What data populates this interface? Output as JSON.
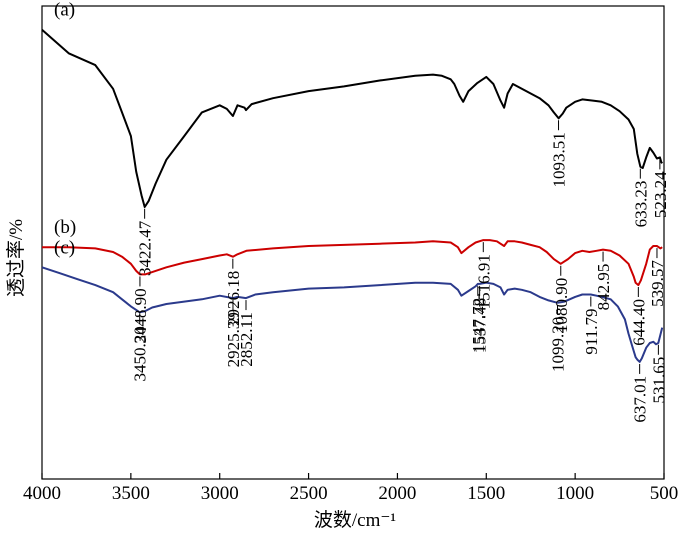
{
  "chart_data": {
    "type": "line",
    "xlabel": "波数/cm⁻¹",
    "ylabel": "透过率/%",
    "xlim": [
      4000,
      500
    ],
    "x_reversed": true,
    "xticks": [
      "4000",
      "3500",
      "3000",
      "2500",
      "2000",
      "1500",
      "1000",
      "500"
    ],
    "grid": false,
    "series": [
      {
        "name": "(a)",
        "color": "#000000",
        "x": [
          4000,
          3850,
          3700,
          3600,
          3550,
          3500,
          3470,
          3440,
          3422,
          3400,
          3360,
          3300,
          3200,
          3100,
          3000,
          2960,
          2926,
          2900,
          2860,
          2852,
          2820,
          2700,
          2500,
          2300,
          2100,
          1900,
          1800,
          1750,
          1700,
          1680,
          1650,
          1630,
          1600,
          1550,
          1500,
          1460,
          1420,
          1400,
          1380,
          1350,
          1300,
          1250,
          1200,
          1150,
          1120,
          1093,
          1070,
          1050,
          1000,
          960,
          900,
          850,
          800,
          750,
          700,
          670,
          650,
          633,
          620,
          600,
          580,
          560,
          540,
          523,
          515,
          510
        ],
        "y": [
          38,
          36,
          35,
          33,
          31,
          29,
          26,
          24,
          23,
          23.5,
          25,
          27,
          29,
          31,
          31.6,
          31.3,
          30.7,
          31.6,
          31.4,
          31.2,
          31.7,
          32.2,
          32.8,
          33.2,
          33.7,
          34.1,
          34.2,
          34.1,
          33.8,
          33.4,
          32.4,
          31.9,
          32.8,
          33.5,
          34.0,
          33.4,
          32.0,
          31.4,
          32.6,
          33.4,
          33.0,
          32.6,
          32.2,
          31.6,
          31.0,
          30.5,
          30.9,
          31.4,
          31.9,
          32.1,
          32.0,
          31.9,
          31.6,
          31.1,
          30.4,
          29.6,
          27.5,
          26.4,
          26.3,
          27.2,
          28.0,
          27.6,
          27.1,
          27.2,
          26.8,
          26.7
        ],
        "ann": [
          3422.47,
          1093.51,
          633.23,
          523.24
        ]
      },
      {
        "name": "(b)",
        "color": "#cc0000",
        "x": [
          4000,
          3850,
          3700,
          3600,
          3550,
          3500,
          3470,
          3449,
          3420,
          3380,
          3300,
          3200,
          3100,
          3000,
          2960,
          2926,
          2900,
          2850,
          2700,
          2500,
          2300,
          2100,
          1900,
          1800,
          1700,
          1660,
          1640,
          1600,
          1560,
          1517,
          1480,
          1440,
          1420,
          1400,
          1380,
          1340,
          1300,
          1250,
          1200,
          1160,
          1120,
          1081,
          1040,
          1000,
          960,
          920,
          880,
          843,
          800,
          750,
          700,
          670,
          660,
          644,
          630,
          600,
          580,
          560,
          540,
          530,
          520,
          510
        ],
        "y": [
          19.6,
          19.6,
          19.5,
          19.2,
          18.8,
          18.2,
          17.6,
          17.3,
          17.3,
          17.5,
          17.9,
          18.3,
          18.6,
          18.9,
          19.0,
          18.8,
          19.0,
          19.3,
          19.5,
          19.7,
          19.8,
          19.9,
          20.0,
          20.1,
          20.0,
          19.6,
          19.1,
          19.6,
          20.0,
          20.2,
          20.2,
          20.1,
          19.9,
          19.7,
          20.1,
          20.1,
          20.0,
          19.8,
          19.6,
          19.2,
          18.6,
          18.2,
          18.6,
          19.1,
          19.3,
          19.2,
          19.3,
          19.4,
          19.3,
          18.9,
          18.2,
          17.1,
          16.6,
          16.4,
          16.8,
          18.2,
          19.4,
          19.7,
          19.7,
          19.6,
          19.5,
          19.6
        ],
        "ann": [
          3448.9,
          2926.18,
          1516.91,
          1080.9,
          842.95,
          644.4,
          539.57
        ]
      },
      {
        "name": "(c)",
        "color": "#2b3a8c",
        "x": [
          4000,
          3900,
          3800,
          3700,
          3600,
          3550,
          3500,
          3470,
          3450,
          3420,
          3380,
          3300,
          3200,
          3100,
          3000,
          2925,
          2900,
          2852,
          2800,
          2700,
          2500,
          2300,
          2100,
          1900,
          1800,
          1700,
          1660,
          1640,
          1600,
          1560,
          1548,
          1537,
          1500,
          1460,
          1420,
          1400,
          1380,
          1340,
          1300,
          1250,
          1200,
          1150,
          1099,
          1060,
          1000,
          960,
          930,
          912,
          880,
          850,
          800,
          760,
          720,
          700,
          680,
          660,
          650,
          637,
          625,
          600,
          580,
          560,
          545,
          532,
          520,
          510
        ],
        "y": [
          17.9,
          17.4,
          16.9,
          16.4,
          15.8,
          15.2,
          14.6,
          14.3,
          14.1,
          14.2,
          14.5,
          14.8,
          15.0,
          15.2,
          15.5,
          15.3,
          15.4,
          15.3,
          15.6,
          15.8,
          16.1,
          16.2,
          16.4,
          16.6,
          16.6,
          16.5,
          16.0,
          15.5,
          15.9,
          16.3,
          16.5,
          16.5,
          16.6,
          16.5,
          16.2,
          15.6,
          16.0,
          16.1,
          16.0,
          15.8,
          15.4,
          15.1,
          14.9,
          15.0,
          15.4,
          15.6,
          15.6,
          15.6,
          15.5,
          15.4,
          15.2,
          14.6,
          13.5,
          12.3,
          11.3,
          10.3,
          10.1,
          9.9,
          10.2,
          11.1,
          11.5,
          11.6,
          11.4,
          11.5,
          12.2,
          12.8
        ],
        "ann": [
          3450.2,
          2925.39,
          2852.11,
          1547.72,
          1537.48,
          1099.2,
          911.79,
          637.01,
          531.65
        ]
      }
    ],
    "panel_labels": [
      "(a)",
      "(b)",
      "(c)"
    ],
    "annotation_labels": [
      [
        "3422.47",
        "1093.51",
        "633.23",
        "523.24"
      ],
      [
        "3448.90",
        "2926.18",
        "1516.91",
        "1080.90",
        "842.95",
        "644.40",
        "539.57"
      ],
      [
        "3450.20",
        "2925.39",
        "2852.11",
        "1547.72",
        "1537.48",
        "1099.20",
        "911.79",
        "637.01",
        "531.65"
      ]
    ]
  }
}
